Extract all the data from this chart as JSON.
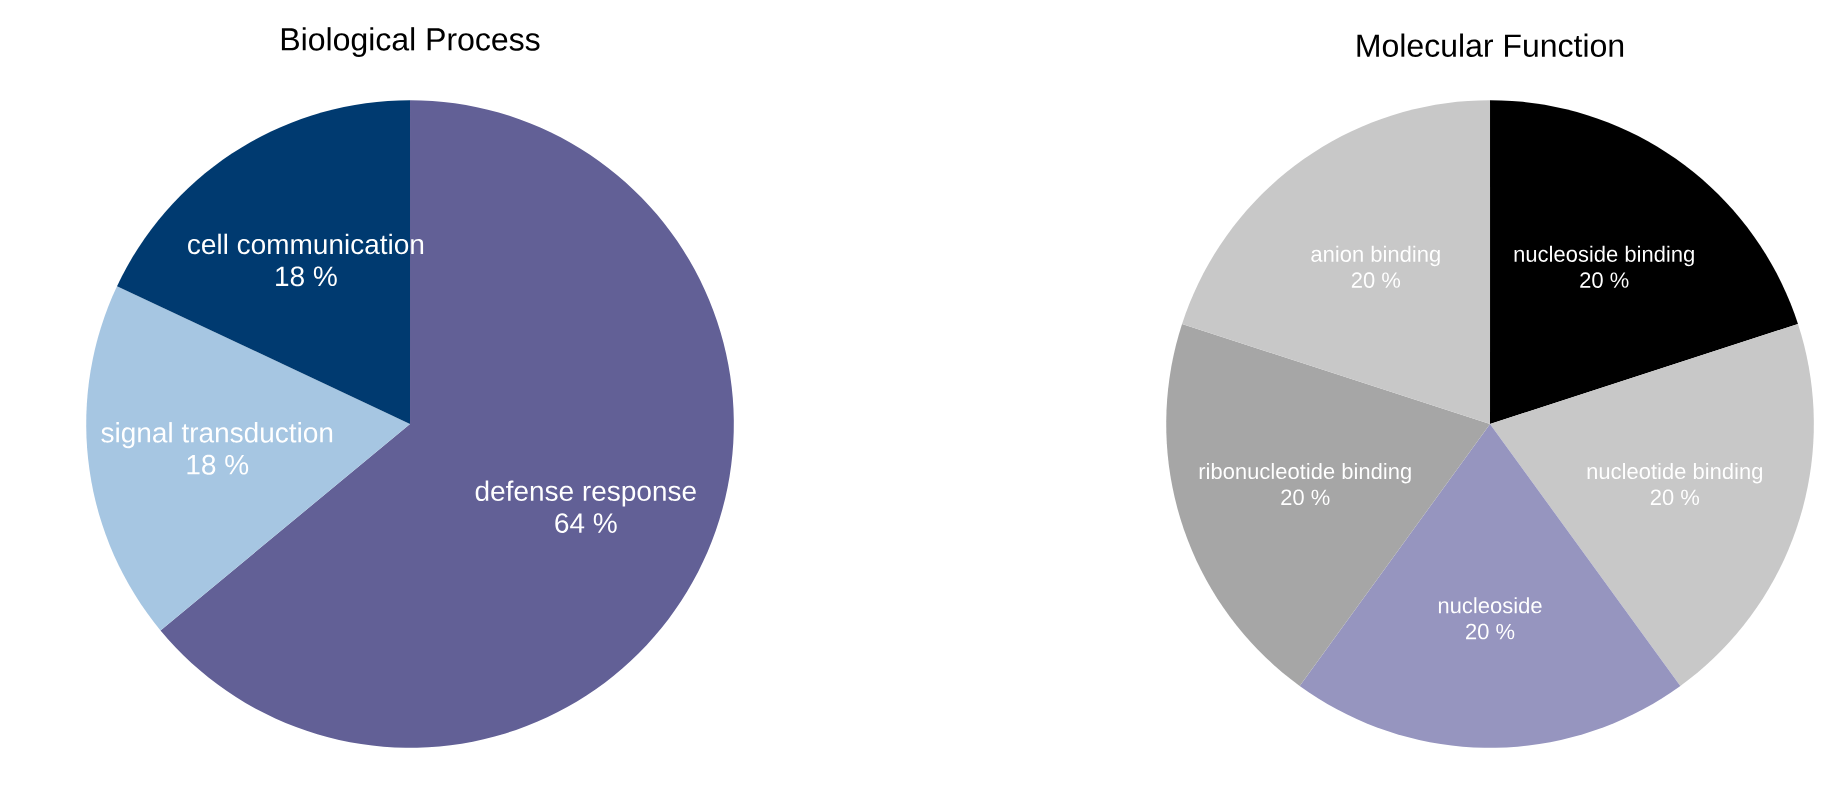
{
  "chart_data": [
    {
      "type": "pie",
      "title": "Biological Process",
      "categories": [
        "defense response",
        "signal transduction",
        "cell communication"
      ],
      "values": [
        64,
        18,
        18
      ],
      "value_labels": [
        "64 %",
        "18 %",
        "18 %"
      ],
      "colors": [
        "#626096",
        "#a6c6e2",
        "#003a70"
      ]
    },
    {
      "type": "pie",
      "title": "Molecular Function",
      "categories": [
        "nucleoside binding",
        "nucleotide binding",
        "nucleoside",
        "ribonucleotide binding",
        "anion binding"
      ],
      "values": [
        20,
        20,
        20,
        20,
        20
      ],
      "value_labels": [
        "20 %",
        "20 %",
        "20 %",
        "20 %",
        "20 %"
      ],
      "colors": [
        "#000000",
        "#c8c8c8",
        "#9695bf",
        "#a6a6a6",
        "#c8c8c8"
      ]
    }
  ]
}
